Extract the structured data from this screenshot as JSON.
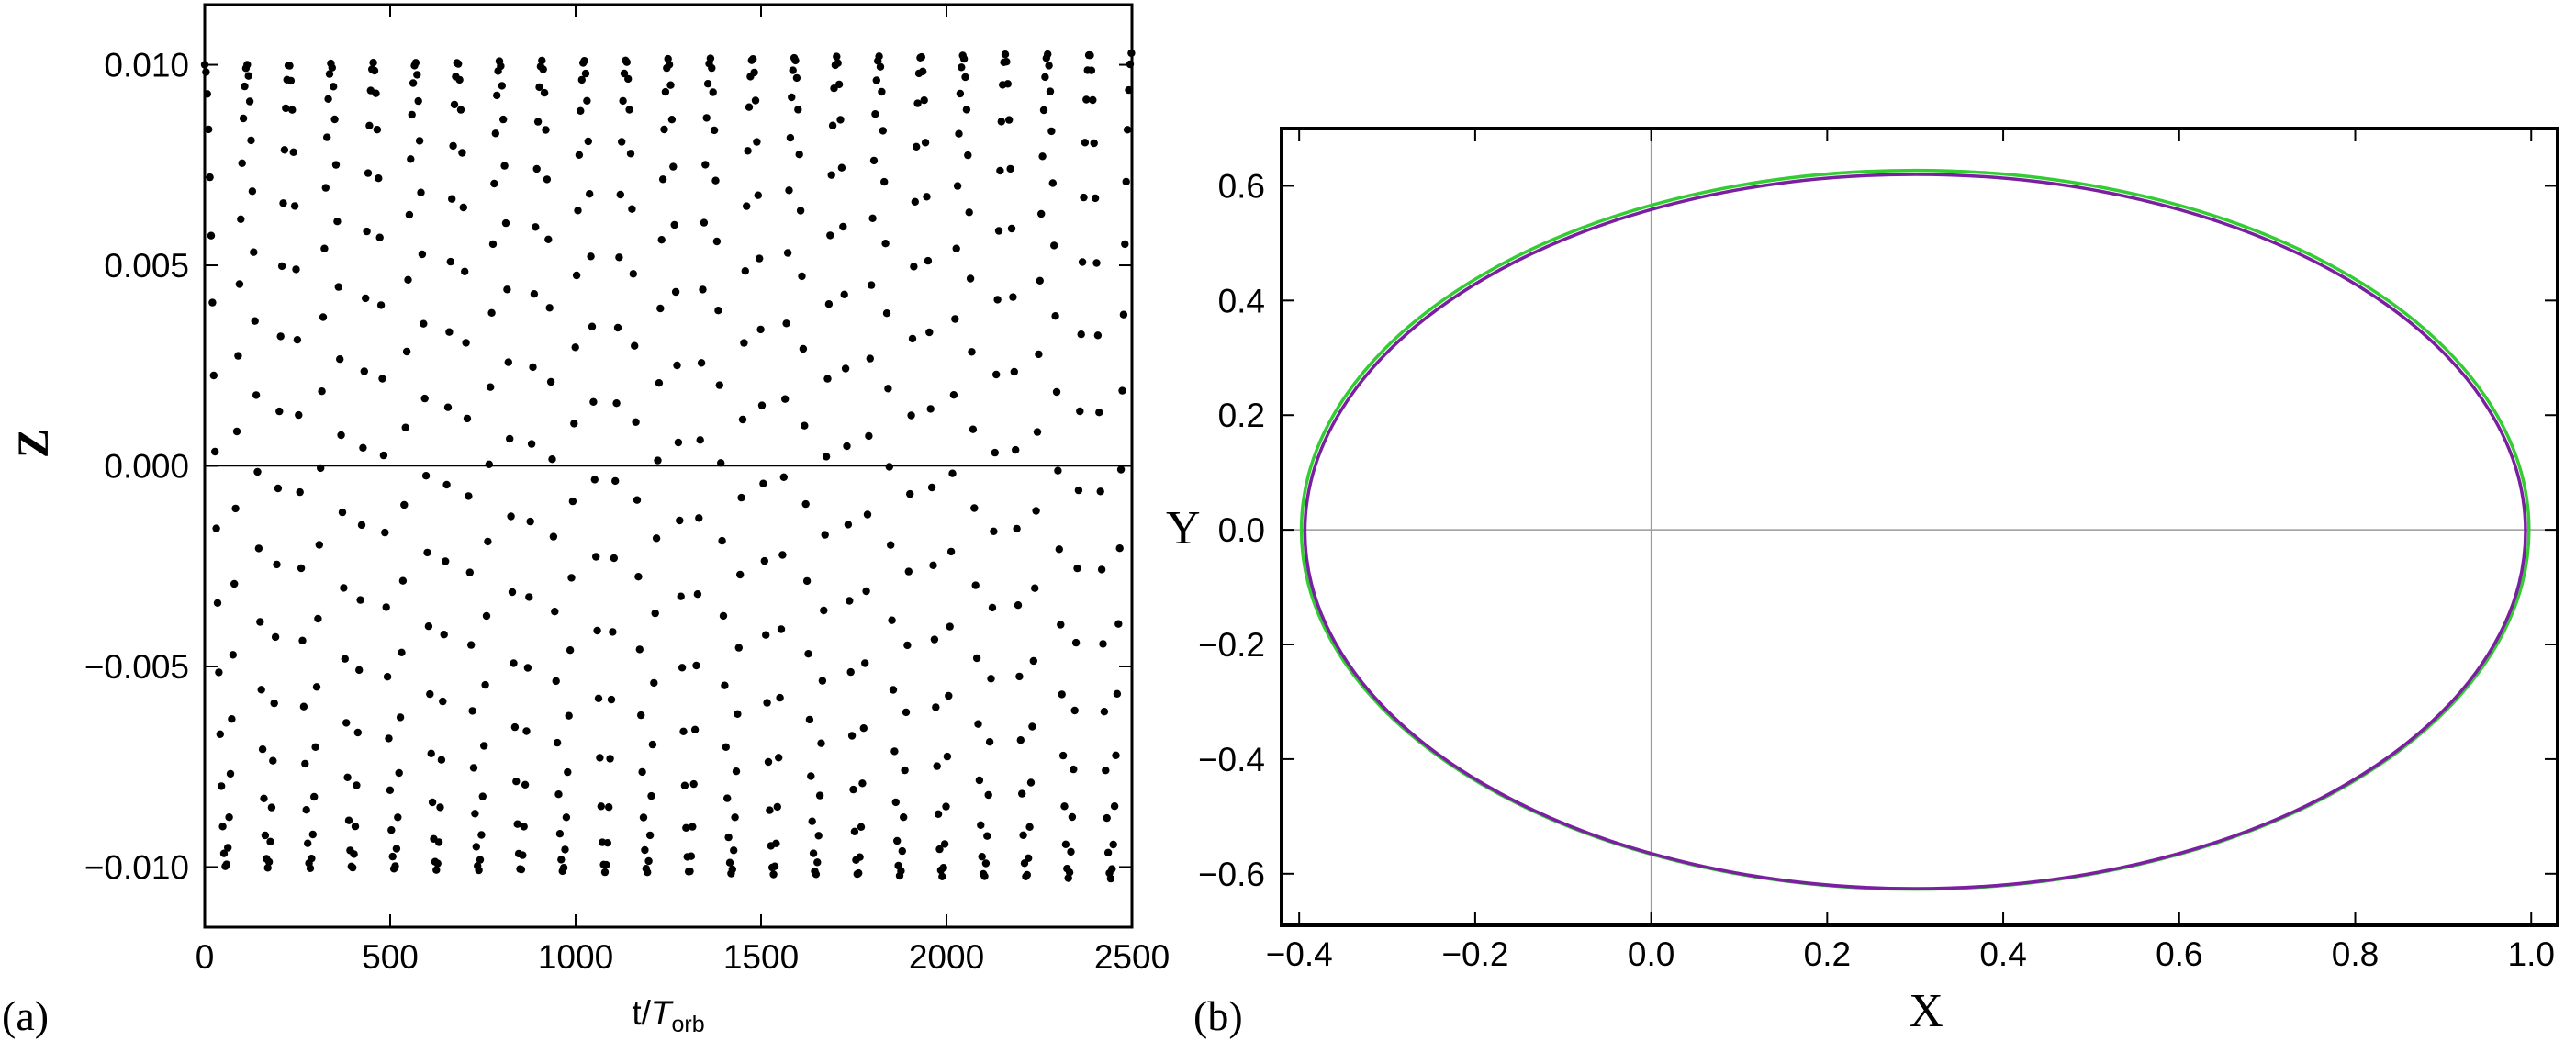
{
  "chart_data": [
    {
      "panel_label": "(a)",
      "type": "scatter",
      "title": "",
      "xlabel": "t/",
      "xlabel_italic": "T",
      "xlabel_sub": "orb",
      "ylabel": "Z",
      "xlim": [
        0,
        2500
      ],
      "ylim": [
        -0.0115,
        0.0115
      ],
      "xticks": [
        "0",
        "500",
        "1000",
        "1500",
        "2000",
        "2500"
      ],
      "yticks": [
        "-0.010",
        "-0.005",
        "0.000",
        "0.005",
        "0.010"
      ],
      "ytick_labels": [
        "−0.010",
        "−0.005",
        "0.000",
        "0.005",
        "0.010"
      ],
      "zero_line": true,
      "series": [
        {
          "marker": "dot",
          "color": "#000000",
          "amplitude": 0.01,
          "oscillation_period": 113.6,
          "sample_step": 3.47,
          "x_range": [
            0,
            2500
          ],
          "amplitude_growth_per_1000": 0.00012
        }
      ]
    },
    {
      "panel_label": "(b)",
      "type": "line",
      "title": "",
      "xlabel": "X",
      "ylabel": "Y",
      "xlim": [
        -0.42,
        1.03
      ],
      "ylim": [
        -0.69,
        0.7
      ],
      "xticks": [
        "-0.4",
        "-0.2",
        "0.0",
        "0.2",
        "0.4",
        "0.6",
        "0.8",
        "1.0"
      ],
      "xtick_labels": [
        "−0.4",
        "−0.2",
        "0.0",
        "0.2",
        "0.4",
        "0.6",
        "0.8",
        "1.0"
      ],
      "yticks": [
        "-0.6",
        "-0.4",
        "-0.2",
        "0.0",
        "0.2",
        "0.4",
        "0.6"
      ],
      "ytick_labels": [
        "−0.6",
        "−0.4",
        "−0.2",
        "0.0",
        "0.2",
        "0.4",
        "0.6"
      ],
      "axis_lines": true,
      "series": [
        {
          "shape": "ellipse",
          "color": "#33cc33",
          "center": [
            0.3,
            0.0
          ],
          "semi_axes": [
            0.6975,
            0.627
          ]
        },
        {
          "shape": "ellipse",
          "color": "#7a1fa0",
          "center": [
            0.3,
            -0.003
          ],
          "semi_axes": [
            0.6935,
            0.623
          ]
        }
      ]
    }
  ]
}
